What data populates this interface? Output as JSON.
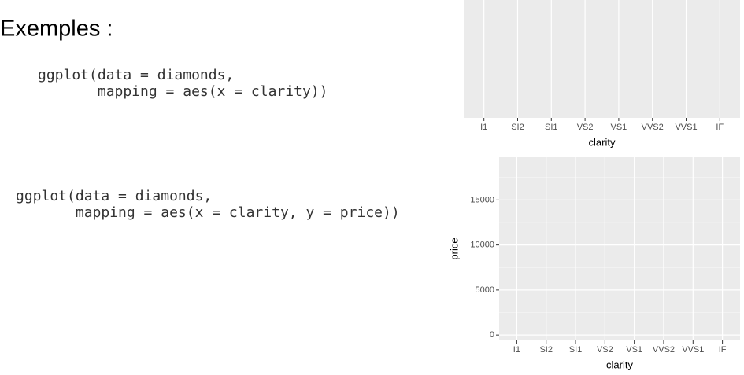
{
  "title": "Exemples :",
  "code": [
    [
      "ggplot(data = diamonds,",
      "       mapping = aes(x = clarity))"
    ],
    [
      "ggplot(data = diamonds,",
      "       mapping = aes(x = clarity, y = price))"
    ]
  ],
  "chart_data": [
    {
      "type": "blank",
      "categories": [
        "I1",
        "SI2",
        "SI1",
        "VS2",
        "VS1",
        "VVS2",
        "VVS1",
        "IF"
      ],
      "x_label": "clarity",
      "grid": true
    },
    {
      "type": "blank",
      "categories": [
        "I1",
        "SI2",
        "SI1",
        "VS2",
        "VS1",
        "VVS2",
        "VVS1",
        "IF"
      ],
      "x_label": "clarity",
      "y_label": "price",
      "ylim": [
        -599,
        19748
      ],
      "yticks": [
        0,
        5000,
        10000,
        15000
      ],
      "y_minor_ticks": [
        2500,
        7500,
        12500,
        17500
      ],
      "grid": true
    }
  ]
}
